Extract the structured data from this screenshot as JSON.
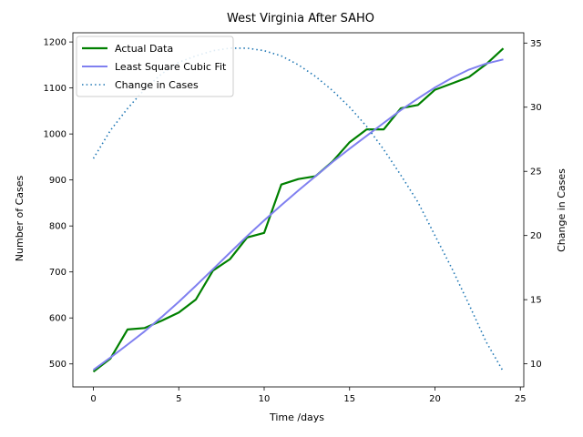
{
  "chart_data": {
    "type": "line",
    "title": "West Virginia After SAHO",
    "xlabel": "Time /days",
    "ylabel": "Number of Cases",
    "y2label": "Change in Cases",
    "xlim": [
      -1.2,
      25.2
    ],
    "ylim": [
      450,
      1220
    ],
    "y2lim": [
      8.2,
      35.8
    ],
    "xticks": [
      0,
      5,
      10,
      15,
      20,
      25
    ],
    "yticks": [
      500,
      600,
      700,
      800,
      900,
      1000,
      1100,
      1200
    ],
    "y2ticks": [
      10,
      15,
      20,
      25,
      30,
      35
    ],
    "grid": false,
    "legend_position": "upper-left",
    "series": [
      {
        "name": "Actual Data",
        "axis": "left",
        "color": "#008000",
        "style": "solid",
        "x": [
          0,
          1,
          2,
          3,
          4,
          5,
          6,
          7,
          8,
          9,
          10,
          11,
          12,
          13,
          14,
          15,
          16,
          17,
          18,
          19,
          20,
          21,
          22,
          23,
          24
        ],
        "values": [
          483,
          512,
          575,
          578,
          594,
          612,
          640,
          703,
          728,
          775,
          785,
          890,
          902,
          908,
          940,
          982,
          1010,
          1010,
          1056,
          1063,
          1096,
          1110,
          1124,
          1152,
          1186
        ]
      },
      {
        "name": "Least Square Cubic Fit",
        "axis": "left",
        "color": "#8080f0",
        "style": "solid",
        "x": [
          0,
          1,
          2,
          3,
          4,
          5,
          6,
          7,
          8,
          9,
          10,
          11,
          12,
          13,
          14,
          15,
          16,
          17,
          18,
          19,
          20,
          21,
          22,
          23,
          24
        ],
        "values": [
          487,
          514,
          542,
          571,
          602,
          635,
          670,
          706,
          742,
          778,
          812,
          845,
          877,
          908,
          939,
          968,
          996,
          1024,
          1052,
          1077,
          1101,
          1122,
          1140,
          1153,
          1162
        ]
      },
      {
        "name": "Change in Cases",
        "axis": "right",
        "color": "#1f77b4",
        "style": "dotted",
        "x": [
          0,
          1,
          2,
          3,
          4,
          5,
          6,
          7,
          8,
          9,
          10,
          11,
          12,
          13,
          14,
          15,
          16,
          17,
          18,
          19,
          20,
          21,
          22,
          23,
          24
        ],
        "values": [
          26.0,
          28.2,
          29.9,
          31.4,
          32.6,
          33.5,
          34.0,
          34.4,
          34.6,
          34.6,
          34.4,
          34.0,
          33.3,
          32.4,
          31.3,
          30.0,
          28.5,
          26.7,
          24.7,
          22.6,
          20.0,
          17.4,
          14.6,
          11.7,
          9.4
        ]
      }
    ]
  }
}
